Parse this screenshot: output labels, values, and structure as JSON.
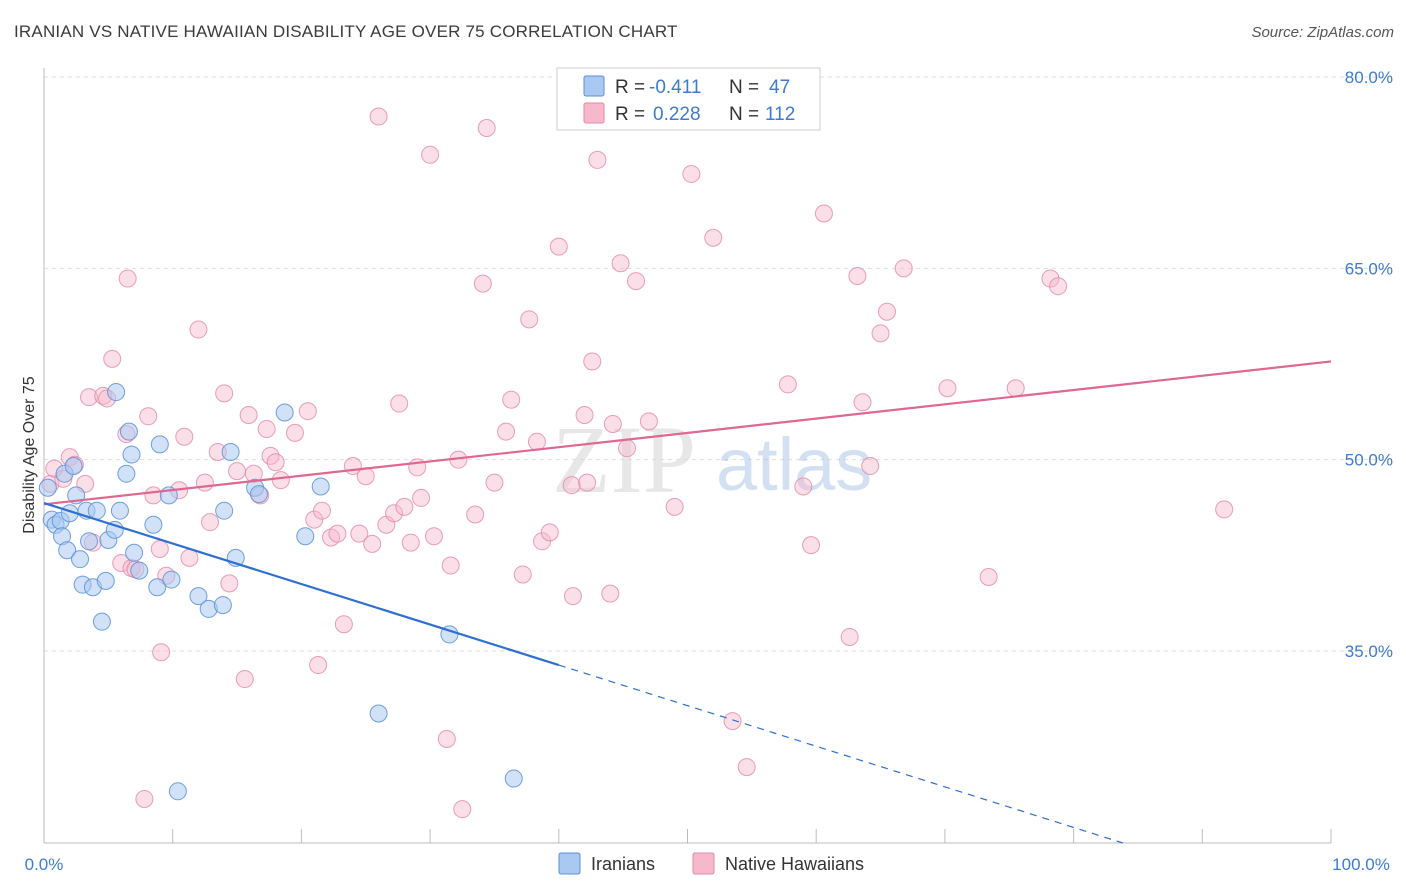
{
  "title": "IRANIAN VS NATIVE HAWAIIAN DISABILITY AGE OVER 75 CORRELATION CHART",
  "source": "Source: ZipAtlas.com",
  "watermark": {
    "zip": "ZIP",
    "atlas": "atlas"
  },
  "colors": {
    "blue_fill": "#a9c8f2",
    "blue_stroke": "#5b8fd6",
    "blue_line": "#2e6fd1",
    "pink_fill": "#f6b9cb",
    "pink_stroke": "#e487a6",
    "pink_line": "#e06890",
    "tick_text": "#3d7bd0",
    "grid": "#dddddd"
  },
  "legend": {
    "r_label": "R =",
    "n_label": "N =",
    "series": [
      {
        "name": "Iranians",
        "r": "-0.411",
        "n": "47"
      },
      {
        "name": "Native Hawaiians",
        "r": "0.228",
        "n": "112"
      }
    ]
  },
  "chart_data": {
    "type": "scatter",
    "title": "IRANIAN VS NATIVE HAWAIIAN DISABILITY AGE OVER 75 CORRELATION CHART",
    "xlabel": "",
    "ylabel": "Disability Age Over 75",
    "xlim": [
      0,
      100
    ],
    "ylim": [
      21,
      81.5
    ],
    "x_tick_labels": [
      "0.0%",
      "100.0%"
    ],
    "y_ticks": [
      35,
      50,
      65,
      80
    ],
    "y_tick_labels": [
      "35.0%",
      "50.0%",
      "65.0%",
      "80.0%"
    ],
    "series": [
      {
        "name": "Iranians",
        "trend": {
          "x0": 0,
          "y0": 46.6,
          "x1": 40,
          "y1": 33.9,
          "dash_to_x": 100,
          "dash_to_y": 14.8
        },
        "points": [
          [
            0.3,
            47.8
          ],
          [
            0.6,
            45.3
          ],
          [
            0.9,
            44.9
          ],
          [
            1.3,
            45.2
          ],
          [
            1.4,
            44.0
          ],
          [
            1.6,
            48.9
          ],
          [
            1.8,
            42.9
          ],
          [
            2.0,
            45.8
          ],
          [
            2.3,
            49.5
          ],
          [
            2.5,
            47.2
          ],
          [
            2.8,
            42.2
          ],
          [
            3.0,
            40.2
          ],
          [
            3.3,
            46.0
          ],
          [
            3.5,
            43.6
          ],
          [
            3.8,
            40.0
          ],
          [
            4.1,
            46.0
          ],
          [
            4.5,
            37.3
          ],
          [
            4.8,
            40.5
          ],
          [
            5.0,
            43.7
          ],
          [
            5.5,
            44.5
          ],
          [
            5.6,
            55.3
          ],
          [
            5.9,
            46.0
          ],
          [
            6.4,
            48.9
          ],
          [
            6.6,
            52.2
          ],
          [
            6.8,
            50.4
          ],
          [
            7.0,
            42.7
          ],
          [
            7.4,
            41.3
          ],
          [
            8.5,
            44.9
          ],
          [
            8.8,
            40.0
          ],
          [
            9.0,
            51.2
          ],
          [
            9.7,
            47.2
          ],
          [
            9.9,
            40.6
          ],
          [
            10.4,
            24.0
          ],
          [
            12.0,
            39.3
          ],
          [
            12.8,
            38.3
          ],
          [
            13.9,
            38.6
          ],
          [
            14.0,
            46.0
          ],
          [
            14.5,
            50.6
          ],
          [
            14.9,
            42.3
          ],
          [
            16.4,
            47.8
          ],
          [
            16.7,
            47.3
          ],
          [
            18.7,
            53.7
          ],
          [
            20.3,
            44.0
          ],
          [
            21.5,
            47.9
          ],
          [
            26.0,
            30.1
          ],
          [
            31.5,
            36.3
          ],
          [
            36.5,
            25.0
          ]
        ]
      },
      {
        "name": "Native Hawaiians",
        "trend": {
          "x0": 0,
          "y0": 46.5,
          "x1": 100,
          "y1": 57.7
        },
        "points": [
          [
            0.5,
            48.1
          ],
          [
            0.8,
            49.3
          ],
          [
            1.5,
            48.5
          ],
          [
            2.0,
            50.2
          ],
          [
            2.4,
            49.6
          ],
          [
            3.2,
            48.1
          ],
          [
            3.5,
            54.9
          ],
          [
            3.8,
            43.5
          ],
          [
            4.6,
            55.0
          ],
          [
            4.9,
            54.8
          ],
          [
            5.3,
            57.9
          ],
          [
            6.0,
            41.9
          ],
          [
            6.4,
            52.0
          ],
          [
            6.5,
            64.2
          ],
          [
            6.8,
            41.5
          ],
          [
            7.1,
            41.4
          ],
          [
            7.8,
            23.4
          ],
          [
            8.1,
            53.4
          ],
          [
            8.5,
            47.2
          ],
          [
            9.0,
            43.0
          ],
          [
            9.1,
            34.9
          ],
          [
            9.5,
            40.9
          ],
          [
            10.5,
            47.6
          ],
          [
            10.9,
            51.8
          ],
          [
            11.3,
            42.3
          ],
          [
            12.0,
            60.2
          ],
          [
            12.5,
            48.2
          ],
          [
            12.9,
            45.1
          ],
          [
            13.5,
            50.6
          ],
          [
            14.0,
            55.2
          ],
          [
            14.4,
            40.3
          ],
          [
            15.0,
            49.1
          ],
          [
            15.6,
            32.8
          ],
          [
            15.9,
            53.5
          ],
          [
            16.3,
            48.9
          ],
          [
            16.8,
            47.2
          ],
          [
            17.3,
            52.4
          ],
          [
            17.6,
            50.3
          ],
          [
            18.0,
            49.8
          ],
          [
            18.4,
            48.4
          ],
          [
            19.5,
            52.1
          ],
          [
            20.5,
            53.8
          ],
          [
            21.0,
            45.3
          ],
          [
            21.3,
            33.9
          ],
          [
            21.6,
            46.0
          ],
          [
            22.3,
            43.9
          ],
          [
            22.8,
            44.2
          ],
          [
            23.3,
            37.1
          ],
          [
            24.0,
            49.5
          ],
          [
            24.5,
            44.2
          ],
          [
            25.0,
            48.7
          ],
          [
            25.5,
            43.4
          ],
          [
            26.0,
            76.9
          ],
          [
            26.6,
            44.9
          ],
          [
            27.2,
            45.8
          ],
          [
            27.6,
            54.4
          ],
          [
            28.0,
            46.3
          ],
          [
            28.5,
            43.5
          ],
          [
            29.0,
            49.4
          ],
          [
            29.3,
            47.0
          ],
          [
            30.0,
            73.9
          ],
          [
            30.3,
            44.0
          ],
          [
            31.3,
            28.1
          ],
          [
            31.6,
            41.7
          ],
          [
            32.2,
            50.0
          ],
          [
            32.5,
            22.6
          ],
          [
            33.5,
            45.7
          ],
          [
            34.1,
            63.8
          ],
          [
            34.4,
            76.0
          ],
          [
            35.0,
            48.2
          ],
          [
            35.9,
            52.2
          ],
          [
            36.3,
            54.7
          ],
          [
            37.2,
            41.0
          ],
          [
            37.7,
            61.0
          ],
          [
            38.3,
            51.4
          ],
          [
            38.7,
            43.6
          ],
          [
            39.3,
            44.3
          ],
          [
            40.0,
            66.7
          ],
          [
            41.0,
            48.0
          ],
          [
            41.1,
            39.3
          ],
          [
            42.0,
            53.5
          ],
          [
            42.2,
            48.2
          ],
          [
            42.6,
            57.7
          ],
          [
            43.0,
            73.5
          ],
          [
            44.0,
            39.5
          ],
          [
            44.2,
            52.8
          ],
          [
            44.8,
            65.4
          ],
          [
            45.3,
            50.9
          ],
          [
            46.0,
            64.0
          ],
          [
            47.0,
            53.0
          ],
          [
            49.0,
            46.3
          ],
          [
            50.3,
            72.4
          ],
          [
            52.0,
            67.4
          ],
          [
            53.5,
            29.5
          ],
          [
            54.6,
            25.9
          ],
          [
            57.8,
            55.9
          ],
          [
            59.0,
            47.9
          ],
          [
            59.6,
            43.3
          ],
          [
            60.6,
            69.3
          ],
          [
            62.6,
            36.1
          ],
          [
            63.2,
            64.4
          ],
          [
            63.6,
            54.5
          ],
          [
            64.2,
            49.5
          ],
          [
            65.0,
            59.9
          ],
          [
            65.5,
            61.6
          ],
          [
            66.8,
            65.0
          ],
          [
            70.2,
            55.6
          ],
          [
            73.4,
            40.8
          ],
          [
            75.5,
            55.6
          ],
          [
            78.2,
            64.2
          ],
          [
            78.8,
            63.6
          ],
          [
            91.7,
            46.1
          ]
        ]
      }
    ],
    "legend_position": "top-center"
  }
}
